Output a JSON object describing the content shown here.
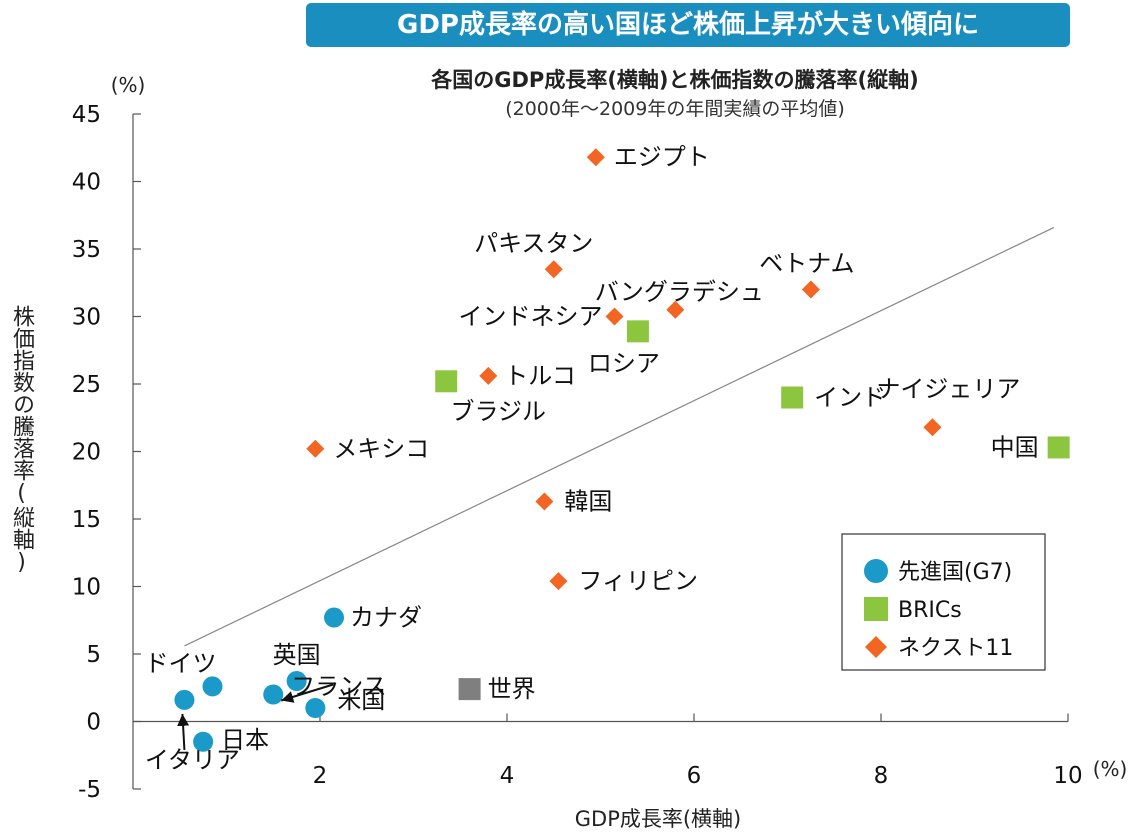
{
  "banner": "GDP成長率の高い国ほど株価上昇が大きい傾向に",
  "chart_data": {
    "type": "scatter",
    "title": "各国のGDP成長率(横軸)と株価指数の騰落率(縦軸)",
    "subtitle": "(2000年〜2009年の年間実績の平均値)",
    "xlabel": "GDP成長率(横軸)",
    "ylabel": "株価指数の騰落率(縦軸)",
    "x_unit": "(%)",
    "y_unit": "(%)",
    "xlim": [
      0,
      10
    ],
    "ylim": [
      -5,
      45
    ],
    "x_ticks": [
      "2",
      "4",
      "6",
      "8",
      "10"
    ],
    "x_tick_values": [
      2,
      4,
      6,
      8,
      10
    ],
    "y_ticks": [
      "45",
      "40",
      "35",
      "30",
      "25",
      "20",
      "15",
      "10",
      "5",
      "0",
      "-5"
    ],
    "y_tick_values": [
      45,
      40,
      35,
      30,
      25,
      20,
      15,
      10,
      5,
      0,
      -5
    ],
    "grid": false,
    "legend_position": "bottom-right",
    "legend": [
      {
        "label": "先進国(G7)",
        "marker": "circle",
        "color": "#1b9ac9"
      },
      {
        "label": "BRICs",
        "marker": "square",
        "color": "#8cc63f"
      },
      {
        "label": "ネクスト11",
        "marker": "diamond",
        "color": "#f26522"
      }
    ],
    "trend_line": {
      "x": [
        0.55,
        9.85
      ],
      "y": [
        5.6,
        36.6
      ]
    },
    "series": [
      {
        "name": "先進国(G7)",
        "marker": "circle",
        "color": "#1b9ac9",
        "points": [
          {
            "label": "ドイツ",
            "x": 0.85,
            "y": 2.6
          },
          {
            "label": "英国",
            "x": 1.75,
            "y": 3.0
          },
          {
            "label": "フランス",
            "x": 1.5,
            "y": 2.0
          },
          {
            "label": "米国",
            "x": 1.95,
            "y": 1.0
          },
          {
            "label": "イタリア",
            "x": 0.55,
            "y": 1.6
          },
          {
            "label": "日本",
            "x": 0.75,
            "y": -1.5
          },
          {
            "label": "カナダ",
            "x": 2.15,
            "y": 7.7
          }
        ]
      },
      {
        "name": "BRICs",
        "marker": "square",
        "color": "#8cc63f",
        "points": [
          {
            "label": "ブラジル",
            "x": 3.35,
            "y": 25.2
          },
          {
            "label": "ロシア",
            "x": 5.4,
            "y": 28.9
          },
          {
            "label": "インド",
            "x": 7.05,
            "y": 24.0
          },
          {
            "label": "中国",
            "x": 9.9,
            "y": 20.3
          }
        ]
      },
      {
        "name": "ネクスト11",
        "marker": "diamond",
        "color": "#f26522",
        "points": [
          {
            "label": "エジプト",
            "x": 4.95,
            "y": 41.8
          },
          {
            "label": "パキスタン",
            "x": 4.5,
            "y": 33.5
          },
          {
            "label": "バングラデシュ",
            "x": 5.8,
            "y": 30.5
          },
          {
            "label": "インドネシア",
            "x": 5.15,
            "y": 30.0
          },
          {
            "label": "ベトナム",
            "x": 7.25,
            "y": 32.0
          },
          {
            "label": "トルコ",
            "x": 3.8,
            "y": 25.6
          },
          {
            "label": "メキシコ",
            "x": 1.95,
            "y": 20.2
          },
          {
            "label": "ナイジェリア",
            "x": 8.55,
            "y": 21.8
          },
          {
            "label": "韓国",
            "x": 4.4,
            "y": 16.3
          },
          {
            "label": "フィリピン",
            "x": 4.55,
            "y": 10.4
          }
        ]
      },
      {
        "name": "",
        "marker": "square",
        "color": "#7f7f7f",
        "points": [
          {
            "label": "世界",
            "x": 3.6,
            "y": 2.4
          }
        ]
      }
    ]
  }
}
